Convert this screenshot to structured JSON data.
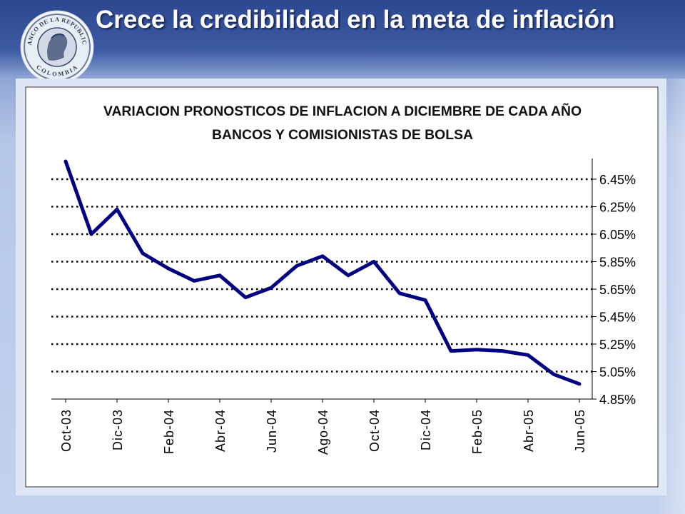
{
  "slide": {
    "title": "Crece la credibilidad en la meta de inflación",
    "logo": {
      "name": "banco-de-la-republica-seal",
      "text_top": "BANCO DE LA REPUBLICA",
      "text_bottom": "COLOMBIA"
    }
  },
  "chart_data": {
    "type": "line",
    "title": "VARIACION PRONOSTICOS DE INFLACION A DICIEMBRE DE CADA AÑO",
    "subtitle": "BANCOS Y COMISIONISTAS DE BOLSA",
    "xlabel": "",
    "ylabel": "",
    "y_axis_position": "right",
    "ylim": [
      4.85,
      6.55
    ],
    "y_ticks": [
      "6.45%",
      "6.25%",
      "6.05%",
      "5.85%",
      "5.65%",
      "5.45%",
      "5.25%",
      "5.05%",
      "4.85%"
    ],
    "y_tick_values": [
      6.45,
      6.25,
      6.05,
      5.85,
      5.65,
      5.45,
      5.25,
      5.05,
      4.85
    ],
    "gridlines": "dotted",
    "legend": "none",
    "series_color": "#000080",
    "x_labels": [
      "Oct-03",
      "Dic-03",
      "Feb-04",
      "Abr-04",
      "Jun-04",
      "Ago-04",
      "Oct-04",
      "Dic-04",
      "Feb-05",
      "Abr-05",
      "Jun-05"
    ],
    "x_label_indices": [
      0,
      2,
      4,
      6,
      8,
      10,
      12,
      14,
      16,
      18,
      20
    ],
    "series": [
      {
        "values": [
          6.58,
          6.05,
          6.23,
          5.91,
          5.8,
          5.71,
          5.75,
          5.59,
          5.66,
          5.82,
          5.89,
          5.75,
          5.85,
          5.62,
          5.57,
          5.2,
          5.21,
          5.2,
          5.17,
          5.03,
          4.96
        ]
      }
    ]
  }
}
